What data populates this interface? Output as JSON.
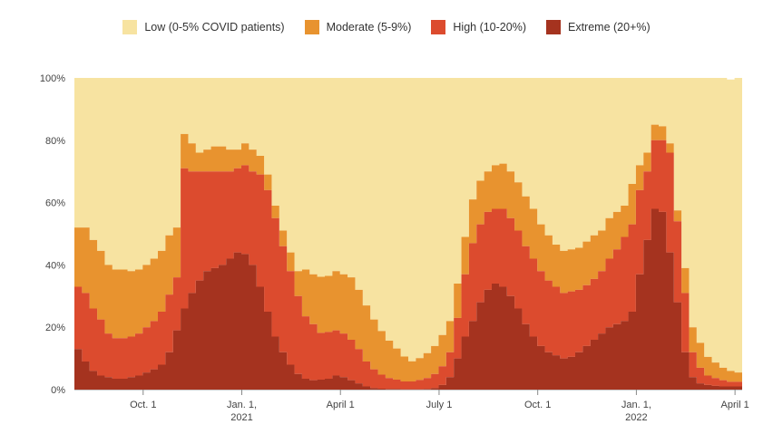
{
  "chart_data": {
    "type": "area",
    "stacked": true,
    "step": true,
    "title": "",
    "xlabel": "",
    "ylabel": "",
    "ylim": [
      0,
      100
    ],
    "y_ticks": [
      "0%",
      "20%",
      "40%",
      "60%",
      "80%",
      "100%"
    ],
    "x_ticks": [
      {
        "label": "Oct. 1",
        "sub": "",
        "index": 9
      },
      {
        "label": "Jan. 1,",
        "sub": "2021",
        "index": 22
      },
      {
        "label": "April 1",
        "sub": "",
        "index": 35
      },
      {
        "label": "July 1",
        "sub": "",
        "index": 48
      },
      {
        "label": "Oct. 1",
        "sub": "",
        "index": 61
      },
      {
        "label": "Jan. 1,",
        "sub": "2022",
        "index": 74
      },
      {
        "label": "April 1",
        "sub": "",
        "index": 87
      }
    ],
    "weeks": 88,
    "legend_position": "top",
    "series": [
      {
        "name": "Extreme (20+%)",
        "color": "#a5331f",
        "values": [
          13,
          9,
          6,
          4.5,
          4,
          3.5,
          3.5,
          4,
          4.5,
          5.5,
          6.5,
          8,
          12,
          19,
          26,
          31,
          35,
          38,
          39,
          40,
          42,
          44,
          43.5,
          40,
          33,
          25,
          17,
          12,
          8,
          5,
          3.5,
          3,
          3.2,
          3.5,
          4.5,
          4,
          3,
          2,
          1,
          0.5,
          0.3,
          0.2,
          0.2,
          0.1,
          0.1,
          0.1,
          0.2,
          0.5,
          1.5,
          4,
          10,
          17,
          22,
          28,
          32,
          34,
          33,
          30,
          26,
          21,
          17,
          14,
          12,
          11,
          10,
          10.5,
          12,
          14,
          16,
          18,
          20,
          21,
          22,
          25,
          37,
          48,
          58,
          57,
          44,
          28,
          12,
          4,
          2,
          1.5,
          1.2,
          1,
          1,
          1
        ]
      },
      {
        "name": "High (10-20%)",
        "color": "#dc4b2e",
        "values": [
          20,
          22,
          20,
          18,
          14,
          13,
          13,
          13,
          13.5,
          14.5,
          15.5,
          17,
          18.5,
          17,
          45,
          39,
          35,
          32,
          31,
          30,
          28,
          27,
          28.5,
          30,
          36,
          39,
          38,
          34,
          30,
          25,
          20,
          18,
          15,
          15,
          14.5,
          14,
          13,
          11,
          8,
          6,
          4.5,
          3.5,
          3,
          2.5,
          2.5,
          3,
          3.5,
          4.5,
          6,
          8,
          13,
          20,
          25,
          25,
          25,
          24,
          25,
          25,
          25,
          25,
          25,
          24,
          23,
          22,
          21,
          21,
          20,
          19.5,
          19.5,
          20,
          22,
          24,
          27,
          28,
          27,
          22,
          22,
          23,
          32,
          26,
          19,
          8,
          5,
          3,
          2.5,
          2,
          1.5,
          1.5
        ]
      },
      {
        "name": "Moderate (5-9%)",
        "color": "#e8932f",
        "values": [
          19,
          21,
          22,
          22,
          22,
          22,
          22,
          21,
          20.5,
          20,
          20,
          19.5,
          19,
          16,
          11,
          9,
          6,
          7,
          8,
          8,
          7,
          6,
          7,
          7,
          6,
          5,
          4,
          5,
          6,
          8,
          15,
          16,
          18,
          18,
          19,
          19,
          20,
          19,
          18,
          16,
          14,
          12,
          10,
          8,
          6.5,
          7,
          8,
          9,
          10,
          10,
          11,
          12,
          14,
          14,
          13,
          14,
          14.5,
          15,
          15.5,
          16,
          16,
          15,
          14.5,
          13.5,
          13.5,
          13.5,
          13.5,
          14,
          14,
          13,
          13,
          12,
          10,
          13,
          8,
          6,
          5,
          4.5,
          3,
          3.5,
          8,
          8,
          8,
          6,
          5,
          4,
          3.5,
          3
        ]
      },
      {
        "name": "Low (0-5% COVID patients)",
        "color": "#f7e3a1",
        "values": [
          48,
          48,
          52,
          55.5,
          60,
          61.5,
          61.5,
          62,
          61.5,
          60,
          58,
          55.5,
          50.5,
          48,
          18,
          21,
          24,
          23,
          22,
          22,
          23,
          23,
          21,
          23,
          25,
          31,
          41,
          49,
          56,
          62,
          61.5,
          63,
          63.8,
          63.5,
          62,
          63,
          64,
          68,
          73,
          77.5,
          81.2,
          84.3,
          86.8,
          89.4,
          90.9,
          89.9,
          88.3,
          86,
          82.5,
          78,
          66,
          51,
          39,
          33,
          30,
          28,
          27.5,
          30,
          33.5,
          38,
          42,
          47,
          50.5,
          53.5,
          55.5,
          55,
          54.5,
          52.5,
          50.5,
          49,
          45,
          43,
          41,
          34,
          28,
          24,
          15,
          15.5,
          21,
          42.5,
          61,
          80,
          85,
          89.5,
          91.3,
          93,
          93.5,
          94.5
        ]
      }
    ]
  }
}
